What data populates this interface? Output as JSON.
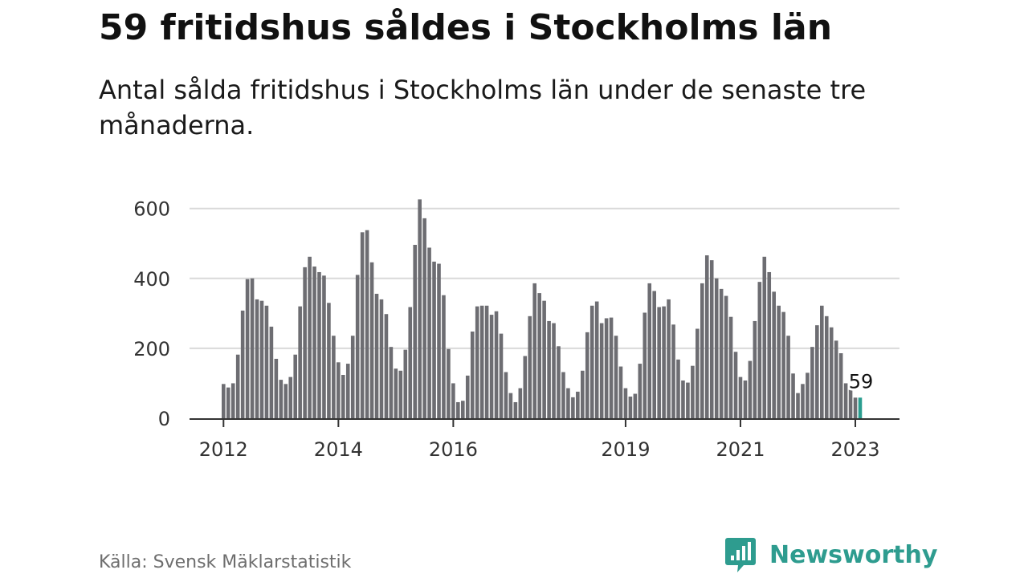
{
  "header": {
    "title": "59 fritidshus såldes i Stockholms län",
    "subtitle": "Antal sålda fritidshus i Stockholms län under de senaste tre månaderna."
  },
  "footer": {
    "source": "Källa: Svensk Mäklarstatistik",
    "brand": "Newsworthy"
  },
  "colors": {
    "bar": "#6d6d72",
    "highlight": "#2a9d8f",
    "grid": "#d9d9d9",
    "axis": "#333333",
    "brand": "#2e9c8f"
  },
  "icons": {
    "brand_logo": "bar-chart-speech-bubble-icon"
  },
  "chart_data": {
    "type": "bar",
    "title": "59 fritidshus såldes i Stockholms län",
    "subtitle": "Antal sålda fritidshus i Stockholms län under de senaste tre månaderna.",
    "xlabel": "",
    "ylabel": "",
    "ylim": [
      0,
      650
    ],
    "yticks": [
      "0",
      "200",
      "400",
      "600"
    ],
    "xticks": [
      {
        "label": "2012",
        "index": 0
      },
      {
        "label": "2014",
        "index": 24
      },
      {
        "label": "2016",
        "index": 48
      },
      {
        "label": "2019",
        "index": 84
      },
      {
        "label": "2021",
        "index": 108
      },
      {
        "label": "2023",
        "index": 132
      }
    ],
    "grid": true,
    "period": "monthly, rolling three months, Jan 2012 – Feb 2023",
    "values": [
      98,
      88,
      100,
      182,
      308,
      398,
      400,
      340,
      336,
      322,
      262,
      170,
      110,
      98,
      118,
      182,
      320,
      432,
      462,
      434,
      418,
      408,
      330,
      236,
      160,
      124,
      156,
      236,
      410,
      532,
      538,
      446,
      356,
      340,
      298,
      204,
      142,
      136,
      196,
      318,
      496,
      626,
      572,
      488,
      448,
      442,
      352,
      198,
      100,
      46,
      50,
      122,
      248,
      320,
      322,
      322,
      296,
      306,
      242,
      132,
      72,
      46,
      86,
      178,
      292,
      386,
      358,
      336,
      278,
      272,
      206,
      132,
      86,
      60,
      76,
      136,
      246,
      322,
      334,
      272,
      286,
      288,
      236,
      148,
      86,
      62,
      70,
      156,
      302,
      386,
      364,
      318,
      320,
      340,
      268,
      168,
      108,
      102,
      150,
      256,
      386,
      466,
      452,
      400,
      370,
      350,
      290,
      190,
      118,
      108,
      164,
      278,
      390,
      462,
      418,
      362,
      322,
      304,
      236,
      128,
      72,
      98,
      130,
      204,
      266,
      322,
      292,
      260,
      222,
      186,
      100,
      84,
      59,
      59
    ],
    "highlight_index": 133,
    "highlight_label": "59"
  }
}
